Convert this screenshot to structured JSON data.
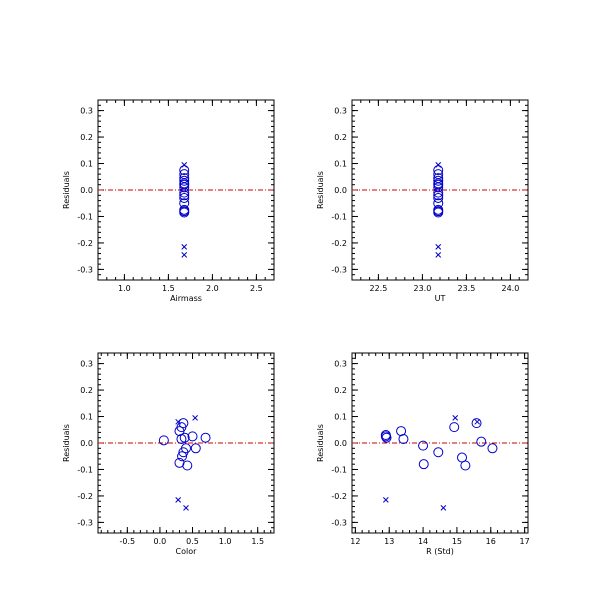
{
  "chart_data": [
    {
      "type": "scatter",
      "xlabel": "Airmass",
      "ylabel": "Residuals",
      "xlim": [
        0.7,
        2.7
      ],
      "ylim": [
        -0.34,
        0.34
      ],
      "xticks": [
        1.0,
        1.5,
        2.0,
        2.5
      ],
      "xtick_labels": [
        "1.0",
        "1.5",
        "2.0",
        "2.5"
      ],
      "yticks": [
        0.3,
        0.2,
        0.1,
        0.0,
        -0.1,
        -0.2,
        -0.3
      ],
      "ytick_labels": [
        "0.3",
        "0.2",
        "0.1",
        "0.0",
        "-0.1",
        "-0.2",
        "-0.3"
      ],
      "reference_line": 0.0,
      "series": [
        {
          "marker": "circle",
          "x": [
            1.68,
            1.68,
            1.68,
            1.68,
            1.68,
            1.68,
            1.68,
            1.68,
            1.68,
            1.68,
            1.68,
            1.68,
            1.68,
            1.68
          ],
          "y": [
            0.075,
            0.06,
            0.045,
            0.025,
            0.02,
            0.01,
            -0.01,
            -0.02,
            -0.03,
            -0.05,
            -0.075,
            -0.08,
            -0.085,
            0.035
          ]
        },
        {
          "marker": "cross",
          "x": [
            1.68,
            1.68,
            1.68
          ],
          "y": [
            0.095,
            -0.215,
            -0.245
          ]
        }
      ]
    },
    {
      "type": "scatter",
      "xlabel": "UT",
      "ylabel": "Residuals",
      "xlim": [
        22.2,
        24.2
      ],
      "ylim": [
        -0.34,
        0.34
      ],
      "xticks": [
        22.5,
        23.0,
        23.5,
        24.0
      ],
      "xtick_labels": [
        "22.5",
        "23.0",
        "23.5",
        "24.0"
      ],
      "yticks": [
        0.3,
        0.2,
        0.1,
        0.0,
        -0.1,
        -0.2,
        -0.3
      ],
      "ytick_labels": [
        "0.3",
        "0.2",
        "0.1",
        "0.0",
        "-0.1",
        "-0.2",
        "-0.3"
      ],
      "reference_line": 0.0,
      "series": [
        {
          "marker": "circle",
          "x": [
            23.18,
            23.18,
            23.18,
            23.18,
            23.18,
            23.18,
            23.18,
            23.18,
            23.18,
            23.18,
            23.18,
            23.18,
            23.18,
            23.18
          ],
          "y": [
            0.075,
            0.06,
            0.045,
            0.025,
            0.02,
            0.01,
            -0.01,
            -0.02,
            -0.03,
            -0.05,
            -0.075,
            -0.08,
            -0.085,
            0.035
          ]
        },
        {
          "marker": "cross",
          "x": [
            23.18,
            23.18,
            23.18
          ],
          "y": [
            0.095,
            -0.215,
            -0.245
          ]
        }
      ]
    },
    {
      "type": "scatter",
      "xlabel": "Color",
      "ylabel": "Residuals",
      "xlim": [
        -0.95,
        1.75
      ],
      "ylim": [
        -0.34,
        0.34
      ],
      "xticks": [
        -0.5,
        0.0,
        0.5,
        1.0,
        1.5
      ],
      "xtick_labels": [
        "-0.5",
        "0.0",
        "0.5",
        "1.0",
        "1.5"
      ],
      "yticks": [
        0.3,
        0.2,
        0.1,
        0.0,
        -0.1,
        -0.2,
        -0.3
      ],
      "ytick_labels": [
        "0.3",
        "0.2",
        "0.1",
        "0.0",
        "-0.1",
        "-0.2",
        "-0.3"
      ],
      "reference_line": 0.0,
      "series": [
        {
          "marker": "circle",
          "x": [
            0.06,
            0.3,
            0.33,
            0.36,
            0.38,
            0.33,
            0.4,
            0.36,
            0.34,
            0.42,
            0.5,
            0.55,
            0.7,
            0.3
          ],
          "y": [
            0.01,
            0.045,
            0.06,
            0.075,
            0.02,
            0.015,
            -0.02,
            -0.035,
            -0.05,
            -0.085,
            0.025,
            -0.02,
            0.02,
            -0.075
          ]
        },
        {
          "marker": "cross",
          "x": [
            0.28,
            0.54,
            0.28,
            0.4
          ],
          "y": [
            0.08,
            0.095,
            -0.215,
            -0.245
          ]
        }
      ]
    },
    {
      "type": "scatter",
      "xlabel": "R (Std)",
      "ylabel": "Residuals",
      "xlim": [
        11.9,
        17.1
      ],
      "ylim": [
        -0.34,
        0.34
      ],
      "xticks": [
        12,
        13,
        14,
        15,
        16,
        17
      ],
      "xtick_labels": [
        "12",
        "13",
        "14",
        "15",
        "16",
        "17"
      ],
      "yticks": [
        0.3,
        0.2,
        0.1,
        0.0,
        -0.1,
        -0.2,
        -0.3
      ],
      "ytick_labels": [
        "0.3",
        "0.2",
        "0.1",
        "0.0",
        "-0.1",
        "-0.2",
        "-0.3"
      ],
      "reference_line": 0.0,
      "series": [
        {
          "marker": "circle",
          "x": [
            12.9,
            12.92,
            13.35,
            13.42,
            14.0,
            14.02,
            14.45,
            14.92,
            15.15,
            15.25,
            15.58,
            15.72,
            16.05,
            12.9
          ],
          "y": [
            0.025,
            0.02,
            0.045,
            0.015,
            -0.01,
            -0.08,
            -0.035,
            0.06,
            -0.055,
            -0.085,
            0.075,
            0.005,
            -0.02,
            0.03
          ]
        },
        {
          "marker": "cross",
          "x": [
            14.95,
            15.6,
            12.9,
            14.6
          ],
          "y": [
            0.095,
            0.08,
            -0.215,
            -0.245
          ]
        }
      ]
    }
  ]
}
